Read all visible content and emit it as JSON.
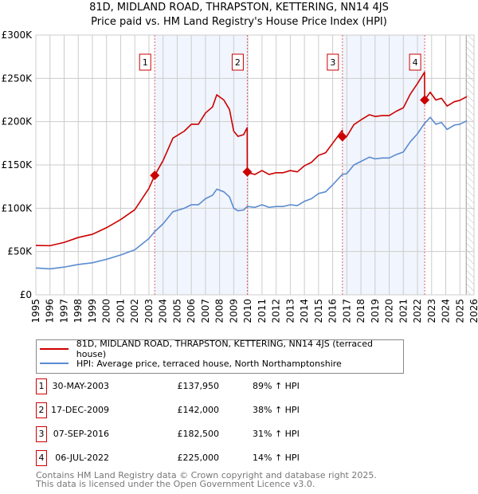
{
  "title": "81D, MIDLAND ROAD, THRAPSTON, KETTERING, NN14 4JS",
  "subtitle": "Price paid vs. HM Land Registry's House Price Index (HPI)",
  "chart_data": {
    "type": "line",
    "title": "81D, MIDLAND ROAD, THRAPSTON, KETTERING, NN14 4JS",
    "subtitle": "Price paid vs. HM Land Registry's House Price Index (HPI)",
    "xlim": [
      1995,
      2026
    ],
    "ylim": [
      0,
      300000
    ],
    "yticks": [
      {
        "v": 0,
        "label": "£0"
      },
      {
        "v": 50000,
        "label": "£50K"
      },
      {
        "v": 100000,
        "label": "£100K"
      },
      {
        "v": 150000,
        "label": "£150K"
      },
      {
        "v": 200000,
        "label": "£200K"
      },
      {
        "v": 250000,
        "label": "£250K"
      },
      {
        "v": 300000,
        "label": "£300K"
      }
    ],
    "xticks": [
      "1995",
      "1996",
      "1997",
      "1998",
      "1999",
      "2000",
      "2001",
      "2002",
      "2003",
      "2004",
      "2005",
      "2006",
      "2007",
      "2008",
      "2009",
      "2010",
      "2011",
      "2012",
      "2013",
      "2014",
      "2015",
      "2016",
      "2017",
      "2018",
      "2019",
      "2020",
      "2021",
      "2022",
      "2023",
      "2024",
      "2025",
      "2026"
    ],
    "grid": true,
    "shaded_periods": [
      [
        2003.41,
        2009.96
      ],
      [
        2016.69,
        2022.51
      ]
    ],
    "forecast_hatch_from": 2025.45,
    "series": [
      {
        "name": "81D, MIDLAND ROAD, THRAPSTON, KETTERING, NN14 4JS (terraced house)",
        "color": "#cc0000",
        "x": [
          1995,
          1996,
          1997,
          1998,
          1999,
          2000,
          2001,
          2002,
          2003,
          2003.41,
          2004,
          2004.7,
          2005.5,
          2006,
          2006.5,
          2007,
          2007.5,
          2007.8,
          2008.3,
          2008.7,
          2009,
          2009.3,
          2009.7,
          2009.95,
          2009.96,
          2010,
          2010.5,
          2011,
          2011.5,
          2012,
          2012.5,
          2013,
          2013.5,
          2014,
          2014.5,
          2015,
          2015.5,
          2016,
          2016.68,
          2016.69,
          2017,
          2017.5,
          2018,
          2018.6,
          2019,
          2019.5,
          2020,
          2020.5,
          2021,
          2021.5,
          2022,
          2022.5,
          2022.51,
          2022.9,
          2023.3,
          2023.7,
          2024.1,
          2024.6,
          2025,
          2025.5
        ],
        "y": [
          57000,
          56700,
          60500,
          66200,
          69900,
          77500,
          86900,
          98300,
          122900,
          137950,
          155000,
          181000,
          189000,
          197000,
          197000,
          210000,
          217000,
          231000,
          225000,
          214000,
          189000,
          183000,
          185000,
          193000,
          142000,
          141000,
          139000,
          143500,
          139000,
          141000,
          141000,
          143500,
          142000,
          149000,
          153000,
          161000,
          164000,
          175000,
          190000,
          182500,
          183000,
          196500,
          202000,
          208000,
          206000,
          207000,
          207000,
          212000,
          216000,
          232000,
          244000,
          257000,
          225000,
          234000,
          225000,
          227000,
          218000,
          223000,
          224600,
          229000
        ]
      },
      {
        "name": "HPI: Average price, terraced house, North Northamptonshire",
        "color": "#5b8bd0",
        "x": [
          1995,
          1996,
          1997,
          1998,
          1999,
          2000,
          2001,
          2002,
          2003,
          2003.41,
          2004,
          2004.7,
          2005.5,
          2006,
          2006.5,
          2007,
          2007.5,
          2007.8,
          2008.3,
          2008.7,
          2009,
          2009.3,
          2009.7,
          2009.95,
          2009.96,
          2010,
          2010.5,
          2011,
          2011.5,
          2012,
          2012.5,
          2013,
          2013.5,
          2014,
          2014.5,
          2015,
          2015.5,
          2016,
          2016.68,
          2016.69,
          2017,
          2017.5,
          2018,
          2018.6,
          2019,
          2019.5,
          2020,
          2020.5,
          2021,
          2021.5,
          2022,
          2022.5,
          2022.51,
          2022.9,
          2023.3,
          2023.7,
          2024.1,
          2024.6,
          2025,
          2025.5
        ],
        "y": [
          31000,
          30000,
          32000,
          35000,
          37000,
          41000,
          46000,
          52000,
          65000,
          73000,
          82000,
          96000,
          100000,
          104000,
          104000,
          111000,
          115000,
          122000,
          119000,
          113000,
          100000,
          97000,
          98000,
          102000,
          102000,
          102000,
          101000,
          104000,
          101000,
          102000,
          102000,
          104000,
          103000,
          108000,
          111000,
          117000,
          119000,
          127000,
          139000,
          139000,
          140000,
          150000,
          154000,
          159000,
          157000,
          158000,
          158000,
          162000,
          165000,
          177000,
          186000,
          198000,
          198000,
          205000,
          197000,
          199000,
          191000,
          196000,
          197000,
          201000
        ]
      }
    ],
    "sales": [
      {
        "n": "1",
        "x": 2003.41,
        "y": 137950
      },
      {
        "n": "2",
        "x": 2009.96,
        "y": 142000
      },
      {
        "n": "3",
        "x": 2016.69,
        "y": 182500
      },
      {
        "n": "4",
        "x": 2022.51,
        "y": 225000
      }
    ]
  },
  "legend": {
    "red": "81D, MIDLAND ROAD, THRAPSTON, KETTERING, NN14 4JS (terraced house)",
    "blue": "HPI: Average price, terraced house, North Northamptonshire"
  },
  "transactions": [
    {
      "n": "1",
      "date": "30-MAY-2003",
      "price": "£137,950",
      "hpi": "89% ↑ HPI"
    },
    {
      "n": "2",
      "date": "17-DEC-2009",
      "price": "£142,000",
      "hpi": "38% ↑ HPI"
    },
    {
      "n": "3",
      "date": "07-SEP-2016",
      "price": "£182,500",
      "hpi": "31% ↑ HPI"
    },
    {
      "n": "4",
      "date": "06-JUL-2022",
      "price": "£225,000",
      "hpi": "14% ↑ HPI"
    }
  ],
  "footer": {
    "line1": "Contains HM Land Registry data © Crown copyright and database right 2025.",
    "line2": "This data is licensed under the Open Government Licence v3.0."
  }
}
